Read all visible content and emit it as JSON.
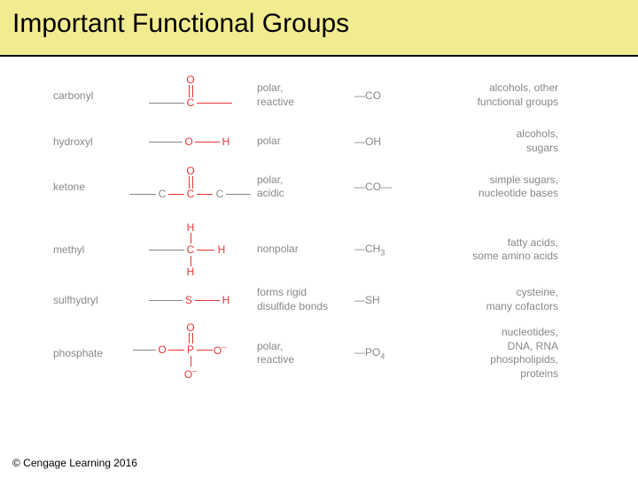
{
  "title": "Important Functional Groups",
  "copyright": "© Cengage Learning 2016",
  "colors": {
    "title_bg": "#f2ec91",
    "atom_red": "#e63636",
    "text_gray": "#888888",
    "bond_dark": "#888888",
    "black": "#000000"
  },
  "font": {
    "title_size": 30,
    "body_size": 12
  },
  "groups": [
    {
      "name": "carbonyl",
      "property": "polar,\nreactive",
      "formula": "—CO",
      "found": "alcohols, other\nfunctional groups"
    },
    {
      "name": "hydroxyl",
      "property": "polar",
      "formula": "—OH",
      "found": "alcohols,\nsugars"
    },
    {
      "name": "ketone",
      "property": "polar,\nacidic",
      "formula": "—CO—",
      "found": "simple sugars,\nnucleotide bases"
    },
    {
      "name": "methyl",
      "property": "nonpolar",
      "formula": "—CH",
      "formula_sub": "3",
      "found": "fatty acids,\nsome amino acids"
    },
    {
      "name": "sulfhydryl",
      "property": "forms rigid\ndisulfide bonds",
      "formula": "—SH",
      "found": "cysteine,\nmany cofactors"
    },
    {
      "name": "phosphate",
      "property": "polar,\nreactive",
      "formula": "—PO",
      "formula_sub": "4",
      "found": "nucleotides,\nDNA, RNA\nphospholipids,\nproteins"
    }
  ]
}
